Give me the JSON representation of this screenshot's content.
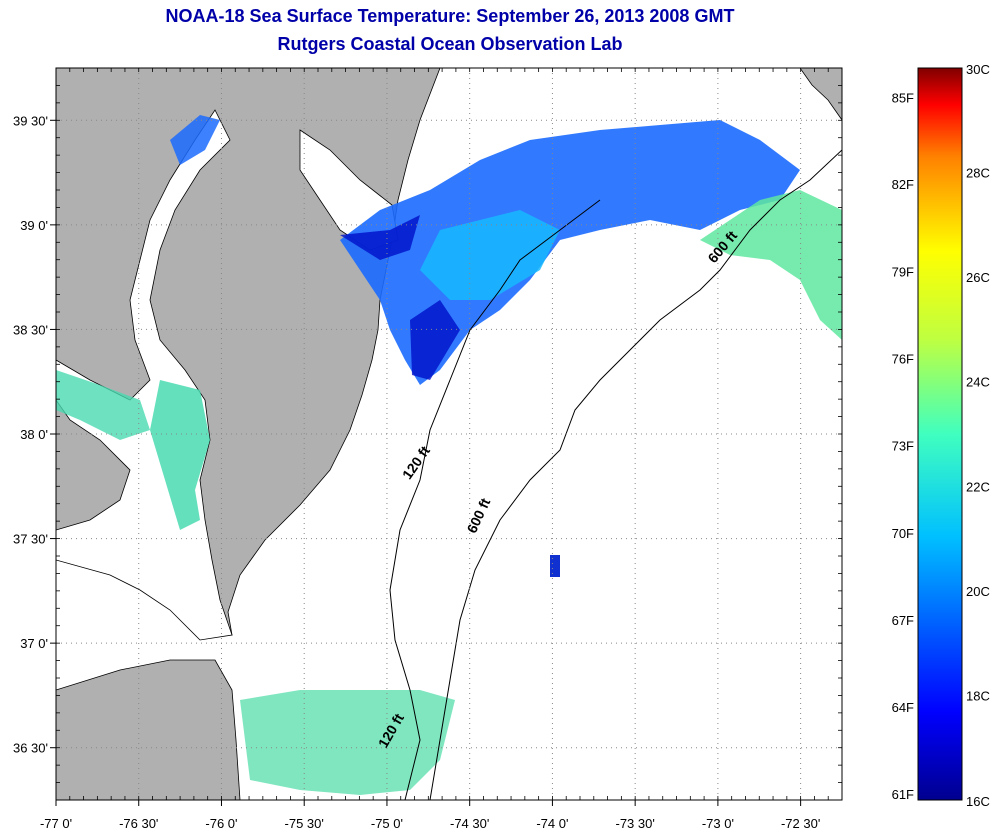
{
  "title": "NOAA-18 Sea Surface Temperature:  September 26, 2013 2008 GMT",
  "subtitle": "Rutgers Coastal Ocean Observation Lab",
  "map": {
    "lon_range": [
      -77.0,
      -72.25
    ],
    "lat_range": [
      36.25,
      39.75
    ],
    "lon_ticks": [
      {
        "value": -77.0,
        "label": "-77 0'"
      },
      {
        "value": -76.5,
        "label": "-76 30'"
      },
      {
        "value": -76.0,
        "label": "-76 0'"
      },
      {
        "value": -75.5,
        "label": "-75 30'"
      },
      {
        "value": -75.0,
        "label": "-75 0'"
      },
      {
        "value": -74.5,
        "label": "-74 30'"
      },
      {
        "value": -74.0,
        "label": "-74 0'"
      },
      {
        "value": -73.5,
        "label": "-73 30'"
      },
      {
        "value": -73.0,
        "label": "-73 0'"
      },
      {
        "value": -72.5,
        "label": "-72 30'"
      }
    ],
    "lat_ticks": [
      {
        "value": 39.5,
        "label": "39 30'"
      },
      {
        "value": 39.0,
        "label": "39 0'"
      },
      {
        "value": 38.5,
        "label": "38 30'"
      },
      {
        "value": 38.0,
        "label": "38 0'"
      },
      {
        "value": 37.5,
        "label": "37 30'"
      },
      {
        "value": 37.0,
        "label": "37 0'"
      },
      {
        "value": 36.5,
        "label": "36 30'"
      }
    ],
    "contour_labels": [
      {
        "text": "600 ft",
        "lon": -72.95,
        "lat": 38.88,
        "angle": -50
      },
      {
        "text": "120 ft",
        "lon": -74.8,
        "lat": 37.85,
        "angle": -55
      },
      {
        "text": "600 ft",
        "lon": -74.42,
        "lat": 37.6,
        "angle": -65
      },
      {
        "text": "120 ft",
        "lon": -74.95,
        "lat": 36.57,
        "angle": -60
      }
    ],
    "colors": {
      "land": "#b0b0b0",
      "ocean": "#ffffff",
      "grid": "#888888"
    }
  },
  "colorbar": {
    "range_c": [
      16,
      30
    ],
    "celsius_labels": [
      "30C",
      "28C",
      "26C",
      "24C",
      "22C",
      "20C",
      "18C",
      "16C"
    ],
    "fahrenheit_labels": [
      {
        "value_c": 29.44,
        "label": "85F"
      },
      {
        "value_c": 27.78,
        "label": "82F"
      },
      {
        "value_c": 26.11,
        "label": "79F"
      },
      {
        "value_c": 24.44,
        "label": "76F"
      },
      {
        "value_c": 22.78,
        "label": "73F"
      },
      {
        "value_c": 21.11,
        "label": "70F"
      },
      {
        "value_c": 19.44,
        "label": "67F"
      },
      {
        "value_c": 17.78,
        "label": "64F"
      },
      {
        "value_c": 16.11,
        "label": "61F"
      }
    ]
  }
}
